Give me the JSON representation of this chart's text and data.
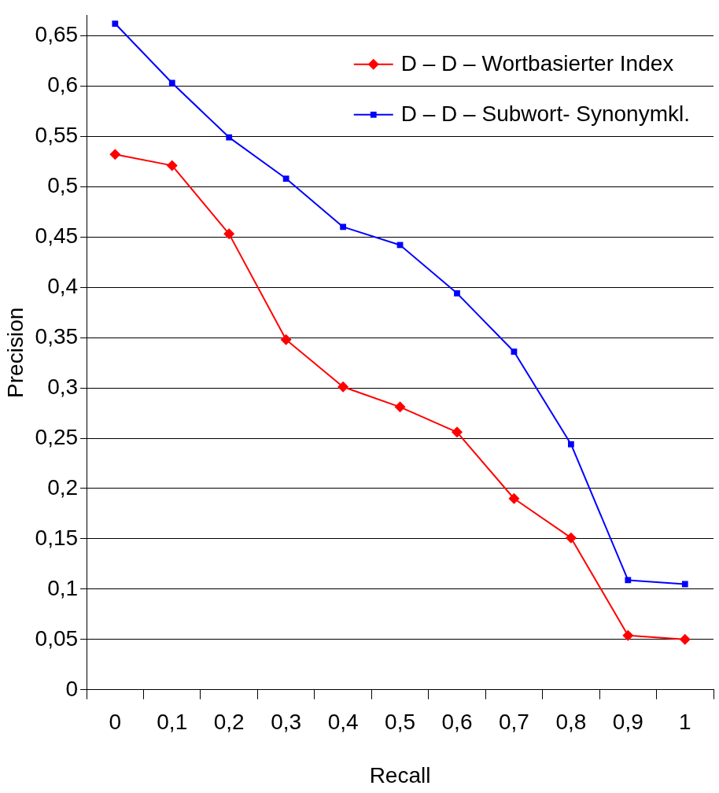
{
  "chart_data": {
    "type": "line",
    "xlabel": "Recall",
    "ylabel": "Precision",
    "categories": [
      "0",
      "0,1",
      "0,2",
      "0,3",
      "0,4",
      "0,5",
      "0,6",
      "0,7",
      "0,8",
      "0,9",
      "1"
    ],
    "series": [
      {
        "name": "D – D – Wortbasierter Index",
        "color": "#ff0000",
        "marker": "diamond",
        "values": [
          0.532,
          0.521,
          0.453,
          0.348,
          0.301,
          0.281,
          0.256,
          0.19,
          0.151,
          0.054,
          0.05
        ]
      },
      {
        "name": "D – D – Subwort- Synonymkl.",
        "color": "#0000ff",
        "marker": "square",
        "values": [
          0.662,
          0.603,
          0.549,
          0.508,
          0.46,
          0.442,
          0.394,
          0.336,
          0.244,
          0.109,
          0.105
        ]
      }
    ],
    "ylim": [
      0,
      0.67
    ],
    "yticks": [
      0,
      {
        "value": 0.05,
        "label": "0,05"
      },
      {
        "value": 0.1,
        "label": "0,1"
      },
      {
        "value": 0.15,
        "label": "0,15"
      },
      {
        "value": 0.2,
        "label": "0,2"
      },
      {
        "value": 0.25,
        "label": "0,25"
      },
      {
        "value": 0.3,
        "label": "0,3"
      },
      {
        "value": 0.35,
        "label": "0,35"
      },
      {
        "value": 0.4,
        "label": "0,4"
      },
      {
        "value": 0.45,
        "label": "0,45"
      },
      {
        "value": 0.5,
        "label": "0,5"
      },
      {
        "value": 0.55,
        "label": "0,55"
      },
      {
        "value": 0.6,
        "label": "0,6"
      },
      {
        "value": 0.65,
        "label": "0,65"
      }
    ],
    "grid": "y",
    "legend": "top right",
    "line_style": "solid"
  }
}
